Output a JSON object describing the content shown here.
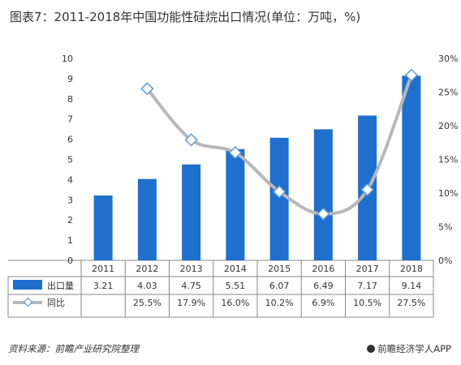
{
  "title": "图表7：2011-2018年中国功能性硅烷出口情况(单位：万吨，%)",
  "footer": {
    "source": "资料来源：前瞻产业研究院整理",
    "brand": "前瞻经济学人APP"
  },
  "table": {
    "row1_label": "出口量",
    "row2_label": "同比",
    "row1_values": [
      "3.21",
      "4.03",
      "4.75",
      "5.51",
      "6.07",
      "6.49",
      "7.17",
      "9.14"
    ],
    "row2_values": [
      "",
      "25.5%",
      "17.9%",
      "16.0%",
      "10.2%",
      "6.9%",
      "10.5%",
      "27.5%"
    ]
  },
  "chart_data": {
    "type": "bar",
    "categories": [
      "2011",
      "2012",
      "2013",
      "2014",
      "2015",
      "2016",
      "2017",
      "2018"
    ],
    "series": [
      {
        "name": "出口量",
        "type": "bar",
        "axis": "left",
        "values": [
          3.21,
          4.03,
          4.75,
          5.51,
          6.07,
          6.49,
          7.17,
          9.14
        ],
        "color": "#1f6fcf"
      },
      {
        "name": "同比",
        "type": "line",
        "axis": "right",
        "values": [
          null,
          25.5,
          17.9,
          16.0,
          10.2,
          6.9,
          10.5,
          27.5
        ],
        "color": "#b8b8b8"
      }
    ],
    "y_left": {
      "min": 0,
      "max": 10,
      "ticks": [
        "0",
        "1",
        "2",
        "3",
        "4",
        "5",
        "6",
        "7",
        "8",
        "9",
        "10"
      ]
    },
    "y_right": {
      "min": 0,
      "max": 30,
      "ticks": [
        "0%",
        "5%",
        "10%",
        "15%",
        "20%",
        "25%",
        "30%"
      ]
    },
    "legend": "in table"
  }
}
